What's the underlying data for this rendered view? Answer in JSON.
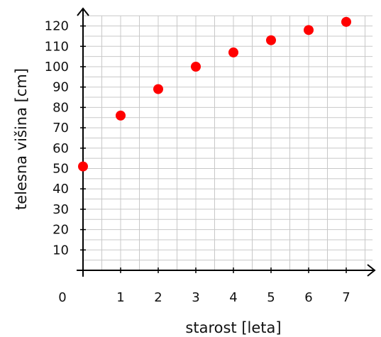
{
  "chart_data": {
    "type": "scatter",
    "title": "",
    "xlabel": "starost [leta]",
    "ylabel": "telesna višina [cm]",
    "xlim": [
      0,
      7.7
    ],
    "ylim": [
      0,
      125
    ],
    "x_ticks": [
      "1",
      "2",
      "3",
      "4",
      "5",
      "6",
      "7"
    ],
    "x_origin_label": "0",
    "y_ticks": [
      "10",
      "20",
      "30",
      "40",
      "50",
      "60",
      "70",
      "80",
      "90",
      "100",
      "110",
      "120"
    ],
    "grid": "on",
    "legend": "none",
    "point_color": "#ff0000",
    "series": [
      {
        "x": [
          0,
          1,
          2,
          3,
          4,
          5,
          6,
          7
        ],
        "y": [
          51,
          76,
          89,
          100,
          107,
          113,
          118,
          122
        ]
      }
    ]
  }
}
